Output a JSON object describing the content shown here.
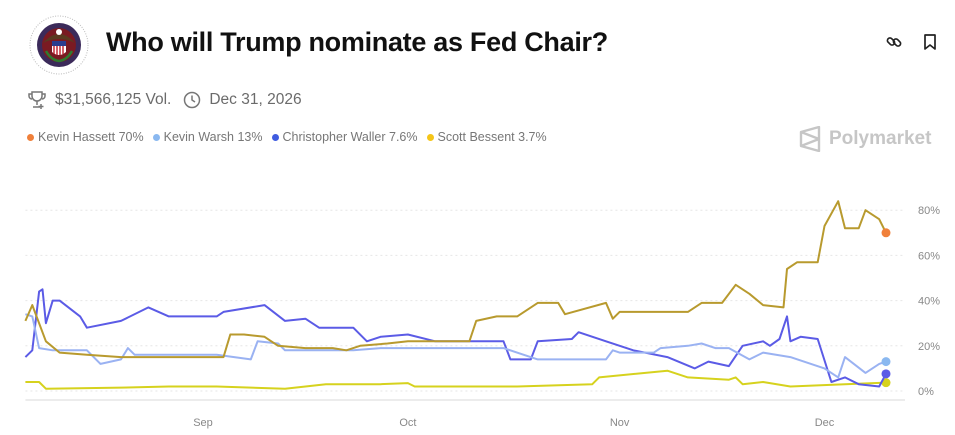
{
  "header": {
    "title": "Who will Trump nominate as Fed Chair?",
    "logo": "federal-reserve-seal",
    "actions": [
      "link-icon",
      "bookmark-icon"
    ]
  },
  "stats": {
    "volume": "$31,566,125 Vol.",
    "end_date": "Dec 31, 2026"
  },
  "brand": "Polymarket",
  "chart_data": {
    "type": "line",
    "title": "",
    "xlabel": "",
    "ylabel": "",
    "x_ticks": [
      "Sep",
      "Oct",
      "Nov",
      "Dec"
    ],
    "y_ticks": [
      "0%",
      "20%",
      "40%",
      "60%",
      "80%"
    ],
    "ylim": [
      0,
      85
    ],
    "xlim": [
      "Aug 6",
      "Dec 10"
    ],
    "grid": "horizontal dotted",
    "legend_position": "top-left",
    "series": [
      {
        "name": "Kevin Hassett",
        "label": "Kevin Hassett 70%",
        "color": "#F0803A",
        "line_color": "#B89A2E",
        "end_color": "#F0803A",
        "values": [
          [
            "Aug 6",
            31
          ],
          [
            "Aug 7",
            38
          ],
          [
            "Aug 9",
            22
          ],
          [
            "Aug 11",
            17
          ],
          [
            "Aug 15",
            16
          ],
          [
            "Aug 20",
            15
          ],
          [
            "Aug 25",
            15
          ],
          [
            "Aug 31",
            15
          ],
          [
            "Sep 4",
            15
          ],
          [
            "Sep 5",
            25
          ],
          [
            "Sep 7",
            25
          ],
          [
            "Sep 10",
            24
          ],
          [
            "Sep 12",
            20
          ],
          [
            "Sep 16",
            19
          ],
          [
            "Sep 20",
            19
          ],
          [
            "Sep 22",
            18
          ],
          [
            "Sep 24",
            20
          ],
          [
            "Sep 28",
            21
          ],
          [
            "Oct 1",
            22
          ],
          [
            "Oct 5",
            22
          ],
          [
            "Oct 10",
            22
          ],
          [
            "Oct 11",
            31
          ],
          [
            "Oct 14",
            33
          ],
          [
            "Oct 17",
            33
          ],
          [
            "Oct 20",
            39
          ],
          [
            "Oct 23",
            39
          ],
          [
            "Oct 24",
            34
          ],
          [
            "Oct 30",
            39
          ],
          [
            "Oct 31",
            32
          ],
          [
            "Nov 1",
            35
          ],
          [
            "Nov 6",
            35
          ],
          [
            "Nov 11",
            35
          ],
          [
            "Nov 13",
            39
          ],
          [
            "Nov 16",
            39
          ],
          [
            "Nov 18",
            47
          ],
          [
            "Nov 20",
            43
          ],
          [
            "Nov 22",
            38
          ],
          [
            "Nov 25",
            37
          ],
          [
            "Nov 25.5",
            54
          ],
          [
            "Nov 27",
            57
          ],
          [
            "Nov 30",
            57
          ],
          [
            "Dec 1",
            73
          ],
          [
            "Dec 3",
            84
          ],
          [
            "Dec 4",
            72
          ],
          [
            "Dec 6",
            72
          ],
          [
            "Dec 7",
            80
          ],
          [
            "Dec 9",
            76
          ],
          [
            "Dec 10",
            70
          ]
        ]
      },
      {
        "name": "Kevin Warsh",
        "label": "Kevin Warsh 13%",
        "color": "#8AB8F0",
        "line_color": "#9AB2F2",
        "end_color": "#8AB8F0",
        "values": [
          [
            "Aug 6",
            34
          ],
          [
            "Aug 7",
            33
          ],
          [
            "Aug 8",
            19
          ],
          [
            "Aug 10",
            18
          ],
          [
            "Aug 15",
            18
          ],
          [
            "Aug 17",
            12
          ],
          [
            "Aug 20",
            14
          ],
          [
            "Aug 21",
            19
          ],
          [
            "Aug 22",
            16
          ],
          [
            "Aug 28",
            16
          ],
          [
            "Sep 3",
            16
          ],
          [
            "Sep 8",
            14
          ],
          [
            "Sep 9",
            22
          ],
          [
            "Sep 12",
            21
          ],
          [
            "Sep 13",
            18
          ],
          [
            "Sep 18",
            18
          ],
          [
            "Sep 23",
            18
          ],
          [
            "Sep 27",
            19
          ],
          [
            "Oct 5",
            19
          ],
          [
            "Oct 12",
            19
          ],
          [
            "Oct 15",
            19
          ],
          [
            "Oct 20",
            14
          ],
          [
            "Oct 25",
            14
          ],
          [
            "Oct 30",
            14
          ],
          [
            "Oct 31",
            18
          ],
          [
            "Nov 1",
            17
          ],
          [
            "Nov 6",
            17
          ],
          [
            "Nov 7",
            19
          ],
          [
            "Nov 11",
            20
          ],
          [
            "Nov 13",
            21
          ],
          [
            "Nov 15",
            19
          ],
          [
            "Nov 17",
            19
          ],
          [
            "Nov 20",
            14
          ],
          [
            "Nov 22",
            17
          ],
          [
            "Nov 26",
            15
          ],
          [
            "Dec 1",
            10
          ],
          [
            "Dec 3",
            6
          ],
          [
            "Dec 4",
            15
          ],
          [
            "Dec 7",
            8
          ],
          [
            "Dec 9",
            12
          ],
          [
            "Dec 10",
            13
          ]
        ]
      },
      {
        "name": "Christopher Waller",
        "label": "Christopher Waller 7.6%",
        "color": "#3F5CE0",
        "line_color": "#5B5BE6",
        "end_color": "#5B5BE6",
        "values": [
          [
            "Aug 6",
            15
          ],
          [
            "Aug 7",
            18
          ],
          [
            "Aug 8",
            44
          ],
          [
            "Aug 8.5",
            45
          ],
          [
            "Aug 9",
            30
          ],
          [
            "Aug 10",
            40
          ],
          [
            "Aug 11",
            40
          ],
          [
            "Aug 14",
            33
          ],
          [
            "Aug 15",
            28
          ],
          [
            "Aug 20",
            31
          ],
          [
            "Aug 24",
            37
          ],
          [
            "Aug 27",
            33
          ],
          [
            "Sep 3",
            33
          ],
          [
            "Sep 4",
            35
          ],
          [
            "Sep 10",
            38
          ],
          [
            "Sep 13",
            31
          ],
          [
            "Sep 16",
            32
          ],
          [
            "Sep 18",
            28
          ],
          [
            "Sep 23",
            28
          ],
          [
            "Sep 25",
            22
          ],
          [
            "Sep 27",
            24
          ],
          [
            "Oct 1",
            25
          ],
          [
            "Oct 5",
            22
          ],
          [
            "Oct 15",
            22
          ],
          [
            "Oct 16",
            14
          ],
          [
            "Oct 19",
            14
          ],
          [
            "Oct 20",
            22
          ],
          [
            "Oct 25",
            23
          ],
          [
            "Oct 26",
            26
          ],
          [
            "Oct 30",
            22
          ],
          [
            "Nov 3",
            18
          ],
          [
            "Nov 8",
            15
          ],
          [
            "Nov 12",
            10
          ],
          [
            "Nov 14",
            13
          ],
          [
            "Nov 17",
            11
          ],
          [
            "Nov 19",
            20
          ],
          [
            "Nov 22",
            22
          ],
          [
            "Nov 23",
            20
          ],
          [
            "Nov 24.4",
            23
          ],
          [
            "Nov 25.5",
            33
          ],
          [
            "Nov 26",
            22
          ],
          [
            "Nov 27.5",
            24
          ],
          [
            "Nov 30",
            23
          ],
          [
            "Dec 2",
            4
          ],
          [
            "Dec 4",
            6
          ],
          [
            "Dec 6",
            3
          ],
          [
            "Dec 9",
            2
          ],
          [
            "Dec 10",
            7.6
          ]
        ]
      },
      {
        "name": "Scott Bessent",
        "label": "Scott Bessent 3.7%",
        "color": "#F5C518",
        "line_color": "#D6D21E",
        "end_color": "#D6D21E",
        "values": [
          [
            "Aug 6",
            4
          ],
          [
            "Aug 8",
            4
          ],
          [
            "Aug 9",
            1
          ],
          [
            "Aug 20",
            1.5
          ],
          [
            "Aug 27",
            2
          ],
          [
            "Sep 3",
            2
          ],
          [
            "Sep 13",
            1
          ],
          [
            "Sep 19",
            3
          ],
          [
            "Sep 27",
            3
          ],
          [
            "Oct 1",
            3.5
          ],
          [
            "Oct 2",
            2
          ],
          [
            "Oct 17",
            2
          ],
          [
            "Oct 28",
            3
          ],
          [
            "Oct 29",
            6
          ],
          [
            "Nov 8",
            9
          ],
          [
            "Nov 11",
            6
          ],
          [
            "Nov 17",
            5
          ],
          [
            "Nov 18",
            6
          ],
          [
            "Nov 19",
            3
          ],
          [
            "Nov 22",
            4
          ],
          [
            "Nov 26",
            2
          ],
          [
            "Dec 4",
            3
          ],
          [
            "Dec 10",
            3.7
          ]
        ]
      }
    ]
  }
}
